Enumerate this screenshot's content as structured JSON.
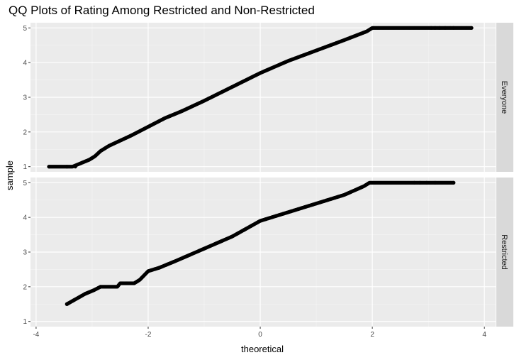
{
  "chart_data": {
    "type": "scatter",
    "title": "QQ Plots of Rating Among Restricted and Non-Restricted",
    "xlabel": "theoretical",
    "ylabel": "sample",
    "xlim": [
      -4.1,
      4.2
    ],
    "ylim": [
      0.85,
      5.15
    ],
    "x_ticks": [
      -4,
      -2,
      0,
      2,
      4
    ],
    "y_ticks": [
      1,
      2,
      3,
      4,
      5
    ],
    "grid": true,
    "legend": "none",
    "panels": [
      {
        "name": "Everyone",
        "quantile_curve": [
          [
            -3.77,
            1.0
          ],
          [
            -3.5,
            1.0
          ],
          [
            -3.35,
            1.0
          ],
          [
            -3.2,
            1.1
          ],
          [
            -3.05,
            1.2
          ],
          [
            -2.95,
            1.3
          ],
          [
            -2.85,
            1.45
          ],
          [
            -2.7,
            1.6
          ],
          [
            -2.5,
            1.75
          ],
          [
            -2.3,
            1.9
          ],
          [
            -2.0,
            2.15
          ],
          [
            -1.7,
            2.4
          ],
          [
            -1.4,
            2.6
          ],
          [
            -1.0,
            2.9
          ],
          [
            -0.5,
            3.3
          ],
          [
            0.0,
            3.7
          ],
          [
            0.5,
            4.05
          ],
          [
            1.0,
            4.35
          ],
          [
            1.5,
            4.65
          ],
          [
            1.9,
            4.9
          ],
          [
            2.0,
            5.0
          ],
          [
            3.77,
            5.0
          ]
        ],
        "extreme_points": [
          [
            -3.77,
            1.0
          ],
          [
            -3.45,
            1.0
          ],
          [
            -3.3,
            1.0
          ],
          [
            3.77,
            5.0
          ],
          [
            3.45,
            5.0
          ],
          [
            3.3,
            5.0
          ],
          [
            3.2,
            5.0
          ],
          [
            3.12,
            5.0
          ],
          [
            3.05,
            5.0
          ]
        ]
      },
      {
        "name": "Restricted",
        "quantile_curve": [
          [
            -3.45,
            1.5
          ],
          [
            -3.12,
            1.8
          ],
          [
            -2.97,
            1.9
          ],
          [
            -2.85,
            2.0
          ],
          [
            -2.55,
            2.0
          ],
          [
            -2.5,
            2.1
          ],
          [
            -2.25,
            2.1
          ],
          [
            -2.15,
            2.2
          ],
          [
            -2.0,
            2.45
          ],
          [
            -1.8,
            2.55
          ],
          [
            -1.5,
            2.75
          ],
          [
            -1.0,
            3.1
          ],
          [
            -0.5,
            3.45
          ],
          [
            0.0,
            3.9
          ],
          [
            0.5,
            4.15
          ],
          [
            1.0,
            4.4
          ],
          [
            1.5,
            4.65
          ],
          [
            1.85,
            4.9
          ],
          [
            1.95,
            5.0
          ],
          [
            3.45,
            5.0
          ]
        ],
        "extreme_points": [
          [
            -3.45,
            1.5
          ],
          [
            -3.12,
            1.8
          ],
          [
            -2.97,
            1.9
          ],
          [
            -2.85,
            2.0
          ],
          [
            3.45,
            5.0
          ],
          [
            3.12,
            5.0
          ],
          [
            2.97,
            5.0
          ],
          [
            2.85,
            5.0
          ],
          [
            2.75,
            5.0
          ]
        ]
      }
    ],
    "colors": {
      "panel_bg": "#ebebeb",
      "grid_major": "#ffffff",
      "strip_bg": "#d9d9d9",
      "point": "#000000",
      "tick_text": "#4d4d4d"
    }
  }
}
